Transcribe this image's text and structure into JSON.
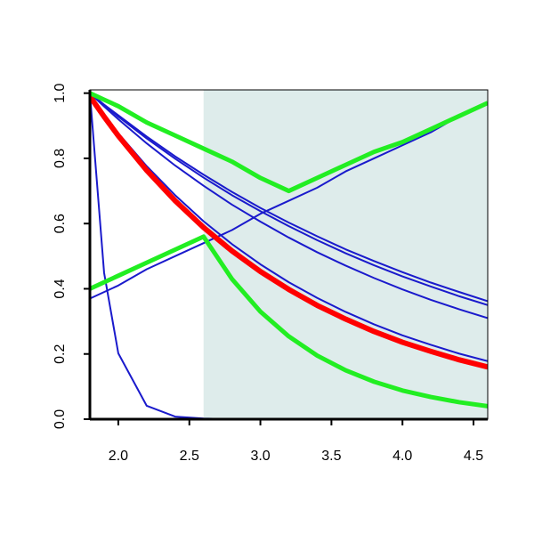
{
  "chart_data": {
    "type": "line",
    "x": [
      1.8,
      1.9,
      2.0,
      2.2,
      2.4,
      2.6,
      2.8,
      3.0,
      3.2,
      3.4,
      3.6,
      3.8,
      4.0,
      4.2,
      4.4,
      4.6
    ],
    "xlim": [
      1.8,
      4.6
    ],
    "ylim": [
      0,
      1.01
    ],
    "xticks": [
      {
        "value": 2.0,
        "label": "2.0"
      },
      2.5,
      {
        "value": 3.0,
        "label": "3.0"
      },
      3.5,
      {
        "value": 4.0,
        "label": "4.0"
      },
      4.5
    ],
    "yticks": [
      {
        "value": 0,
        "label": "0.0"
      },
      0.2,
      0.4,
      0.6,
      0.8,
      {
        "value": 1,
        "label": "1.0"
      }
    ],
    "shaded_xrange": [
      2.6,
      4.6
    ],
    "shade_color": "#deeceb",
    "series": [
      {
        "color": "#1a1acc",
        "line_width": 2,
        "values": [
          1.0,
          0.449,
          0.202,
          0.041,
          0.008,
          0.002,
          0,
          0,
          0,
          0,
          0,
          0,
          0,
          0,
          0,
          0
        ]
      },
      {
        "color": "#1a1acc",
        "line_width": 2,
        "values": [
          0.37,
          0.39,
          0.41,
          0.46,
          0.5,
          0.54,
          0.58,
          0.63,
          0.67,
          0.71,
          0.76,
          0.8,
          0.84,
          0.88,
          0.93,
          0.97
        ]
      },
      {
        "color": "#1a1acc",
        "line_width": 2,
        "values": [
          1.0,
          0.965,
          0.932,
          0.867,
          0.806,
          0.75,
          0.697,
          0.648,
          0.603,
          0.561,
          0.521,
          0.485,
          0.451,
          0.419,
          0.39,
          0.362
        ]
      },
      {
        "color": "#1a1acc",
        "line_width": 2,
        "values": [
          1.0,
          0.963,
          0.928,
          0.861,
          0.799,
          0.741,
          0.687,
          0.638,
          0.592,
          0.549,
          0.509,
          0.472,
          0.438,
          0.407,
          0.377,
          0.35
        ]
      },
      {
        "color": "#1a1acc",
        "line_width": 2,
        "values": [
          1.0,
          0.959,
          0.92,
          0.846,
          0.778,
          0.716,
          0.658,
          0.606,
          0.557,
          0.512,
          0.471,
          0.433,
          0.398,
          0.366,
          0.337,
          0.31
        ]
      },
      {
        "color": "#1a1acc",
        "line_width": 2,
        "values": [
          0.99,
          0.932,
          0.877,
          0.776,
          0.687,
          0.607,
          0.537,
          0.475,
          0.42,
          0.372,
          0.329,
          0.291,
          0.257,
          0.228,
          0.201,
          0.178
        ]
      },
      {
        "color": "#ff0000",
        "line_width": 6,
        "values": [
          0.99,
          0.928,
          0.869,
          0.763,
          0.67,
          0.588,
          0.516,
          0.453,
          0.398,
          0.349,
          0.307,
          0.269,
          0.236,
          0.208,
          0.182,
          0.16
        ]
      },
      {
        "color": "#22ee22",
        "line_width": 5,
        "values": [
          1.0,
          0.98,
          0.96,
          0.91,
          0.87,
          0.83,
          0.79,
          0.74,
          0.7,
          0.74,
          0.78,
          0.82,
          0.85,
          0.89,
          0.93,
          0.97
        ]
      },
      {
        "color": "#22ee22",
        "line_width": 5,
        "values": [
          0.4,
          0.42,
          0.44,
          0.48,
          0.52,
          0.56,
          0.43,
          0.33,
          0.254,
          0.195,
          0.15,
          0.115,
          0.088,
          0.068,
          0.052,
          0.04
        ]
      }
    ]
  }
}
